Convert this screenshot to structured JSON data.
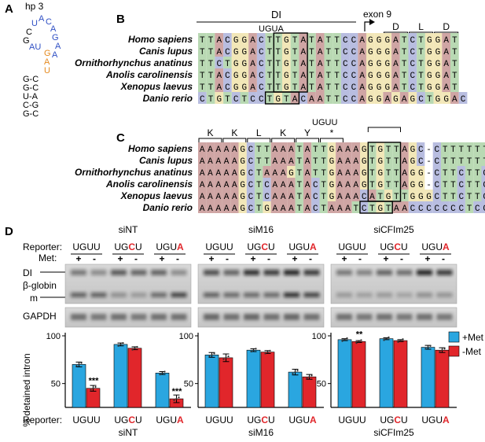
{
  "colors": {
    "A": "#cfa5a4",
    "C": "#b8bde0",
    "G": "#f2e7b8",
    "T": "#b9d9b3",
    "plus_met": "#2aa6e0",
    "minus_met": "#e1262b",
    "hairpin_blue": "#2f4fc4",
    "hairpin_orange": "#e58a1f",
    "highlight_red": "#e1262b"
  },
  "panel_a": {
    "letter": "A",
    "title": "hp 3",
    "loop": [
      "U",
      "A",
      "C",
      "A",
      "G",
      "A",
      "A"
    ],
    "left_c": "C",
    "left_g": "G",
    "left_au": "AU",
    "orange_g": "G",
    "orange_a": "A",
    "orange_u": "U",
    "stem": [
      "G-C",
      "G-C",
      "U-A",
      "C-G",
      "G-C"
    ]
  },
  "panel_b": {
    "letter": "B",
    "di_label": "DI",
    "uguа_label": "UGUA",
    "exon_label": "exon 9",
    "aa_labels": [
      "D",
      "L",
      "D"
    ],
    "species": [
      "Homo sapiens",
      "Canis lupus",
      "Ornithorhynchus anatinus",
      "Anolis carolinensis",
      "Xenopus laevus",
      "Danio rerio"
    ],
    "seqs": [
      "TTACGGACTTGTATATTCCAGGGATCTGGAT",
      "TTACGGACTTGTATATTCCAGGGATCTGGAT",
      "TTCTGGACTTGTATATTCCAGGGATCTGGAT",
      "TTACGGACTTGTATATTCCAGGGATCTGGAT",
      "TTACGGACTTGTATATTCCAGGGATCTGGAT",
      "CTGTCTCCTGTACAATTCCAGGAGAGCTGGAC"
    ]
  },
  "panel_c": {
    "letter": "C",
    "aa_labels": [
      "K",
      "K",
      "L",
      "K",
      "Y",
      "*"
    ],
    "uguu_label": "UGUU",
    "species": [
      "Homo sapiens",
      "Canis lupus",
      "Ornithorhynchus anatinus",
      "Anolis carolinensis",
      "Xenopus laevus",
      "Danio rerio"
    ],
    "seqs": [
      "AAAAAGCTTAAATATTGAAAGTGTTAGC-CTTTTTTC--",
      "AAAAAGCTTAAATATTGAAAGTGTTAGC-CTTTTTTC--",
      "AAAAAGCTAAAGTATTGAAAGTGTTAGG-CTTCTTC---",
      "AAAAAGCTCAAATACTGAAAGTGTTAGG-CTTCTTC---",
      "AAAAAGCTCAAATACTGAAACATGTTGGGCTTCTTCC--",
      "AAAAAGCTGAAATACTAAATCTGTAACCCCCCCTCCTTT"
    ]
  },
  "panel_d": {
    "letter": "D",
    "reporter_label": "Reporter:",
    "met_label": "Met:",
    "di_label": "DI",
    "globin_label": "β-globin",
    "m_label": "m",
    "gapdh_label": "GAPDH",
    "groups": [
      "siNT",
      "siM16",
      "siCFIm25"
    ],
    "reporters": [
      {
        "base": "UG",
        "mid": "U",
        "end": "U",
        "red": "none"
      },
      {
        "base": "UG",
        "mid": "C",
        "end": "U",
        "red": "mid"
      },
      {
        "base": "UGU",
        "mid": "",
        "end": "A",
        "red": "end"
      }
    ],
    "met_signs": [
      "+",
      "-"
    ],
    "legend": {
      "plus": "+Met",
      "minus": "-Met"
    },
    "ylabel": "% detained intron",
    "yticks": [
      "50",
      "100"
    ],
    "reporter_bottom_label": "Reporter:"
  },
  "chart_data": [
    {
      "type": "bar",
      "title": "siNT",
      "categories": [
        "UGUU",
        "UGCU",
        "UGUA"
      ],
      "series": [
        {
          "name": "+Met",
          "values": [
            70,
            91,
            61
          ]
        },
        {
          "name": "-Met",
          "values": [
            45,
            87,
            34
          ]
        }
      ],
      "errors": [
        [
          2.5,
          1.5,
          1.5
        ],
        [
          3,
          1.5,
          4
        ]
      ],
      "significance": [
        "***",
        "",
        "***"
      ],
      "ylabel": "% detained intron",
      "ylim": [
        25,
        100
      ]
    },
    {
      "type": "bar",
      "title": "siM16",
      "categories": [
        "UGUU",
        "UGCU",
        "UGUA"
      ],
      "series": [
        {
          "name": "+Met",
          "values": [
            80,
            85,
            62
          ]
        },
        {
          "name": "-Met",
          "values": [
            77,
            83,
            57
          ]
        }
      ],
      "errors": [
        [
          2.5,
          1.5,
          3
        ],
        [
          4,
          1.5,
          2.5
        ]
      ],
      "significance": [
        "",
        "",
        ""
      ],
      "ylim": [
        25,
        100
      ]
    },
    {
      "type": "bar",
      "title": "siCFIm25",
      "categories": [
        "UGUU",
        "UGCU",
        "UGUA"
      ],
      "series": [
        {
          "name": "+Met",
          "values": [
            96,
            97,
            88
          ]
        },
        {
          "name": "-Met",
          "values": [
            94,
            95,
            85
          ]
        }
      ],
      "errors": [
        [
          1,
          1,
          2
        ],
        [
          1,
          1,
          2.5
        ]
      ],
      "significance": [
        "**",
        "",
        ""
      ],
      "ylim": [
        25,
        100
      ]
    }
  ]
}
